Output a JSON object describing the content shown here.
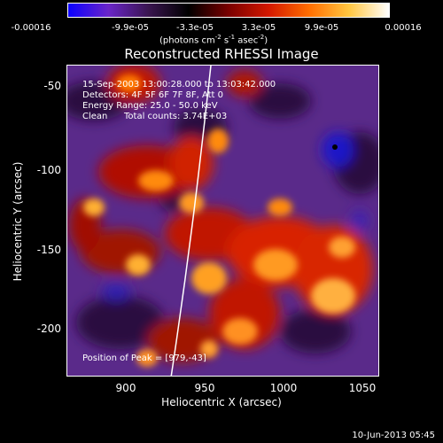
{
  "colorbar": {
    "ticks": [
      "-0.00016",
      "-9.9e-05",
      "-3.3e-05",
      "3.3e-05",
      "9.9e-05",
      "0.00016"
    ],
    "units_prefix": "(photons cm",
    "units_sup1": "-2",
    "units_mid1": " s",
    "units_sup2": "-1",
    "units_mid2": " asec",
    "units_sup3": "-2",
    "units_suffix": ")",
    "colors": [
      "#0b00ff",
      "#6a25c9",
      "#3a1550",
      "#000000",
      "#7a0000",
      "#d41800",
      "#ff6d00",
      "#ffc640",
      "#ffffff"
    ]
  },
  "plot": {
    "title": "Reconstructed RHESSI Image",
    "info_line1": "15-Sep-2003 13:00:28.000 to 13:03:42.000",
    "info_line2": "Detectors: 4F 5F 6F 7F 8F, Att 0",
    "info_line3": "Energy Range: 25.0 - 50.0 keV",
    "info_line4_a": "Clean",
    "info_line4_b": "Total counts: 3.74E+03",
    "peak_label": "Position of Peak = [979,-43]",
    "xlabel": "Heliocentric X (arcsec)",
    "ylabel": "Heliocentric Y (arcsec)",
    "xticks": [
      "900",
      "950",
      "1000",
      "1050"
    ],
    "yticks": [
      "-50",
      "-100",
      "-150",
      "-200"
    ]
  },
  "footer": {
    "date": "10-Jun-2013 05:45"
  }
}
